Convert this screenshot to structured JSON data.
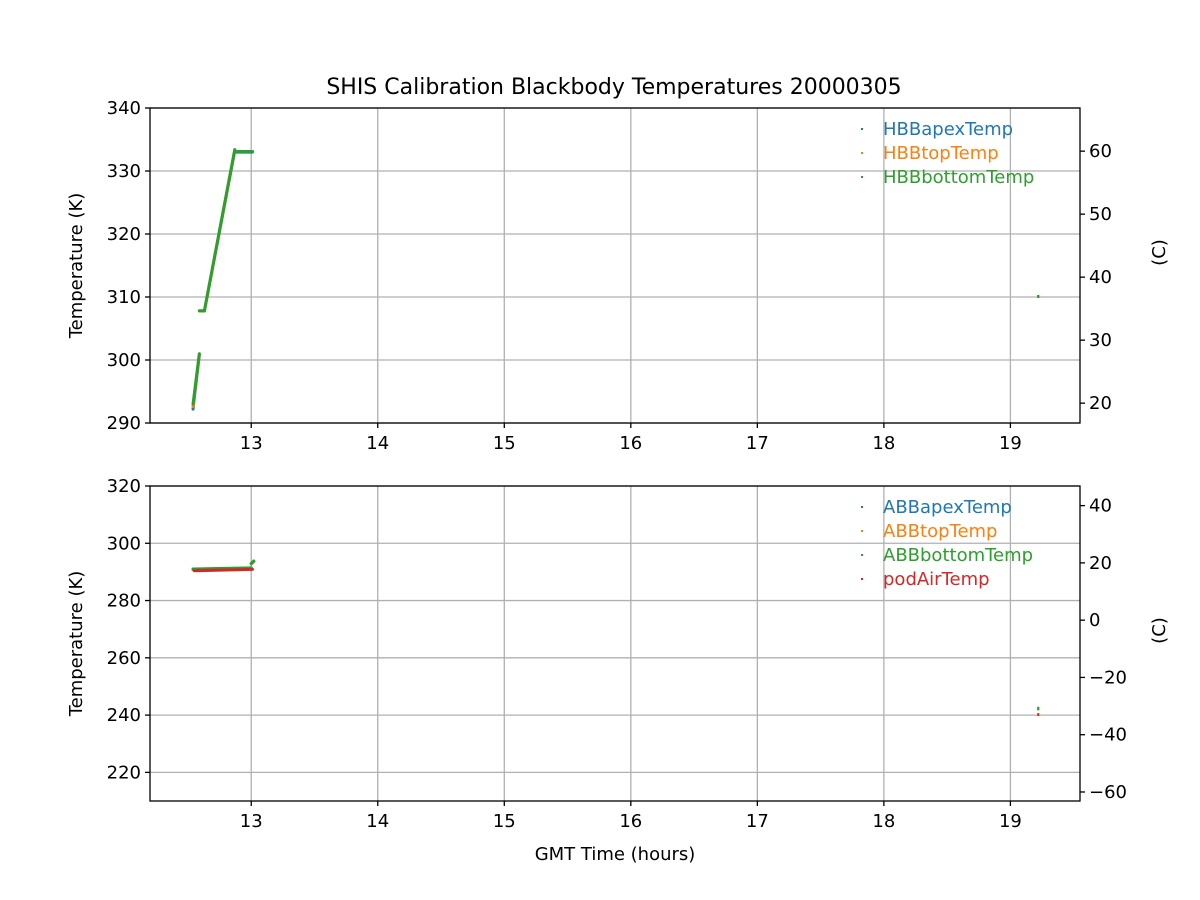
{
  "title": "SHIS Calibration Blackbody Temperatures 20000305",
  "xlabel": "GMT Time (hours)",
  "chart_data": [
    {
      "type": "scatter",
      "title": "SHIS Calibration Blackbody Temperatures 20000305",
      "xlabel": "",
      "ylabel": "Temperature (K)",
      "y2label": "(C)",
      "xlim": [
        12.2,
        19.55
      ],
      "ylim": [
        290,
        340
      ],
      "y2lim": [
        16.85,
        66.85
      ],
      "xticks": [
        13,
        14,
        15,
        16,
        17,
        18,
        19
      ],
      "yticks": [
        290,
        300,
        310,
        320,
        330,
        340
      ],
      "y2ticks": [
        20,
        30,
        40,
        50,
        60
      ],
      "grid": true,
      "legend_position": "top-right",
      "series": [
        {
          "name": "HBBapexTemp",
          "color": "#1f77b4",
          "segments": [
            {
              "x": [
                12.54,
                12.59
              ],
              "y": [
                292.2,
                300.8
              ]
            },
            {
              "x": [
                12.59,
                12.63
              ],
              "y": [
                307.8,
                307.8
              ]
            },
            {
              "x": [
                12.63,
                12.87
              ],
              "y": [
                307.8,
                333.2
              ]
            },
            {
              "x": [
                12.87,
                13.01
              ],
              "y": [
                333.0,
                333.0
              ]
            }
          ],
          "points": [
            {
              "x": 19.22,
              "y": 310.0
            }
          ]
        },
        {
          "name": "HBBtopTemp",
          "color": "#ff7f0e",
          "segments": [
            {
              "x": [
                12.54,
                12.59
              ],
              "y": [
                292.6,
                301.0
              ]
            },
            {
              "x": [
                12.59,
                12.63
              ],
              "y": [
                307.8,
                307.8
              ]
            },
            {
              "x": [
                12.63,
                12.87
              ],
              "y": [
                307.8,
                333.3
              ]
            },
            {
              "x": [
                12.87,
                13.01
              ],
              "y": [
                333.1,
                333.1
              ]
            }
          ],
          "points": [
            {
              "x": 19.22,
              "y": 310.0
            }
          ]
        },
        {
          "name": "HBBbottomTemp",
          "color": "#2ca02c",
          "segments": [
            {
              "x": [
                12.54,
                12.59
              ],
              "y": [
                293.0,
                301.0
              ]
            },
            {
              "x": [
                12.59,
                12.63
              ],
              "y": [
                307.8,
                307.8
              ]
            },
            {
              "x": [
                12.63,
                12.87
              ],
              "y": [
                307.8,
                333.4
              ]
            },
            {
              "x": [
                12.87,
                13.01
              ],
              "y": [
                333.1,
                333.1
              ]
            }
          ],
          "points": [
            {
              "x": 19.22,
              "y": 310.0
            }
          ]
        }
      ]
    },
    {
      "type": "scatter",
      "title": "",
      "xlabel": "GMT Time (hours)",
      "ylabel": "Temperature (K)",
      "y2label": "(C)",
      "xlim": [
        12.2,
        19.55
      ],
      "ylim": [
        210,
        320
      ],
      "y2lim": [
        -63.15,
        46.85
      ],
      "xticks": [
        13,
        14,
        15,
        16,
        17,
        18,
        19
      ],
      "yticks": [
        220,
        240,
        260,
        280,
        300,
        320
      ],
      "y2ticks": [
        -60,
        -40,
        -20,
        0,
        20,
        40
      ],
      "grid": true,
      "legend_position": "top-right",
      "series": [
        {
          "name": "ABBapexTemp",
          "color": "#1f77b4",
          "segments": [
            {
              "x": [
                12.54,
                13.0
              ],
              "y": [
                290.8,
                291.2
              ]
            },
            {
              "x": [
                13.0,
                13.02
              ],
              "y": [
                292.8,
                293.6
              ]
            }
          ],
          "points": [
            {
              "x": 19.22,
              "y": 242.0
            }
          ]
        },
        {
          "name": "ABBtopTemp",
          "color": "#ff7f0e",
          "segments": [
            {
              "x": [
                12.54,
                13.0
              ],
              "y": [
                290.9,
                291.3
              ]
            },
            {
              "x": [
                13.0,
                13.02
              ],
              "y": [
                292.9,
                293.6
              ]
            }
          ],
          "points": [
            {
              "x": 19.22,
              "y": 242.0
            }
          ]
        },
        {
          "name": "ABBbottomTemp",
          "color": "#2ca02c",
          "segments": [
            {
              "x": [
                12.54,
                13.0
              ],
              "y": [
                291.0,
                291.4
              ]
            },
            {
              "x": [
                13.0,
                13.02
              ],
              "y": [
                293.0,
                293.8
              ]
            }
          ],
          "points": [
            {
              "x": 19.22,
              "y": 242.2
            }
          ]
        },
        {
          "name": "podAirTemp",
          "color": "#d62728",
          "segments": [
            {
              "x": [
                12.55,
                13.01
              ],
              "y": [
                290.4,
                290.9
              ]
            }
          ],
          "points": [
            {
              "x": 19.22,
              "y": 240.0
            }
          ]
        }
      ]
    }
  ]
}
